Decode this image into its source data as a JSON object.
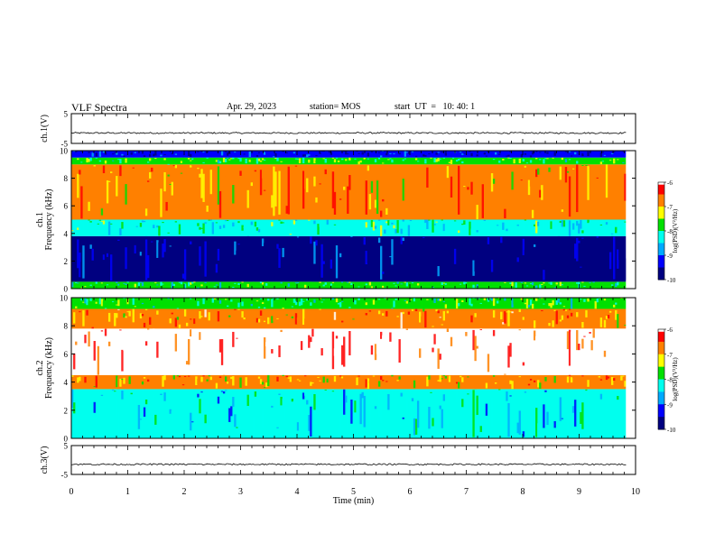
{
  "header": {
    "title": "VLF Spectra",
    "date": "Apr. 29, 2023",
    "station": "station= MOS",
    "start": "start  UT  =   10: 40: 1"
  },
  "colors": {
    "colormap": [
      "#000080",
      "#0000ff",
      "#00aaff",
      "#00ffee",
      "#00e000",
      "#ffff00",
      "#ff8000",
      "#ff0000",
      "#ffffff"
    ]
  },
  "chart_data": [
    {
      "type": "line",
      "panel": "ch1-waveform",
      "ylabel": "ch.1(V)",
      "ylim": [
        -5,
        5
      ],
      "yticks": [
        "5",
        "-5"
      ],
      "xlim": [
        0,
        10
      ],
      "baseline_value": -1.5
    },
    {
      "type": "heatmap",
      "panel": "ch1-spectrogram",
      "ylabel": "ch.1\nFrequency (kHz)",
      "ylabel_lines": [
        "ch.1",
        "Frequency (kHz)"
      ],
      "ylim": [
        0,
        10
      ],
      "yticks": [
        "0",
        "2",
        "4",
        "6",
        "8",
        "10"
      ],
      "xlim": [
        0,
        10
      ],
      "colorbar": {
        "label": "log(PSD)(V²/Hz)",
        "ticks": [
          "-6",
          "-7",
          "-8",
          "-9",
          "-10"
        ],
        "range": [
          -10,
          -6
        ]
      },
      "bands_khz": [
        {
          "from": 0,
          "to": 0.5,
          "level": -8
        },
        {
          "from": 0.5,
          "to": 3.8,
          "level": -9.6
        },
        {
          "from": 3.8,
          "to": 5,
          "level": -8.2
        },
        {
          "from": 5,
          "to": 9,
          "level": -6.9
        },
        {
          "from": 9,
          "to": 9.5,
          "level": -7.8
        },
        {
          "from": 9.5,
          "to": 10,
          "level": -9.5
        }
      ]
    },
    {
      "type": "heatmap",
      "panel": "ch2-spectrogram",
      "ylabel": "ch.2\nFrequency (kHz)",
      "ylabel_lines": [
        "ch.2",
        "Frequency (kHz)"
      ],
      "ylim": [
        0,
        10
      ],
      "yticks": [
        "0",
        "2",
        "4",
        "6",
        "8",
        "10"
      ],
      "xlim": [
        0,
        10
      ],
      "colorbar": {
        "label": "log(PSD)(V²/Hz)",
        "ticks": [
          "-6",
          "-7",
          "-8",
          "-9",
          "-10"
        ],
        "range": [
          -10,
          -6
        ]
      },
      "bands_khz": [
        {
          "from": 0,
          "to": 3.5,
          "level": -8.4
        },
        {
          "from": 3.5,
          "to": 4.5,
          "level": -7.0
        },
        {
          "from": 4.5,
          "to": 7.8,
          "level": -6.0
        },
        {
          "from": 7.8,
          "to": 9.2,
          "level": -6.8
        },
        {
          "from": 9.2,
          "to": 10,
          "level": -7.9
        }
      ]
    },
    {
      "type": "line",
      "panel": "ch3-waveform",
      "ylabel": "ch.3(V)",
      "ylim": [
        -5,
        5
      ],
      "yticks": [
        "5",
        "-5"
      ],
      "xlim": [
        0,
        10
      ],
      "baseline_value": -1.5
    }
  ],
  "xaxis": {
    "xlabel": "Time (min)",
    "ticks": [
      "0",
      "1",
      "2",
      "3",
      "4",
      "5",
      "6",
      "7",
      "8",
      "9",
      "10"
    ],
    "data_end": 9.83
  }
}
